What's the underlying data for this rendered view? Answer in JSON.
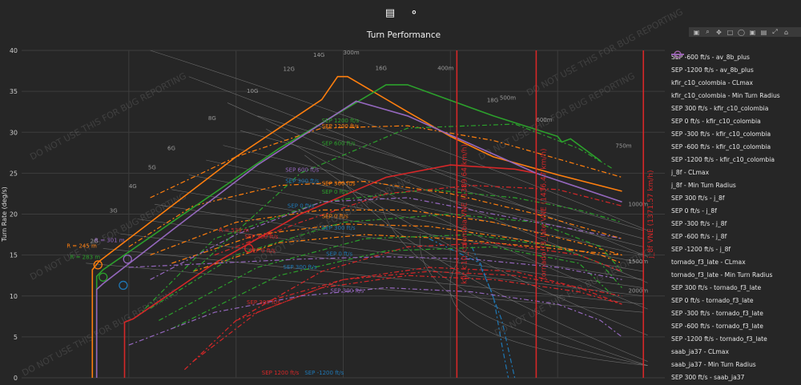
{
  "toolbar": {
    "ruler_icon": "ruler-icon",
    "share_icon": "share-icon",
    "modebar_icons": [
      "camera-icon",
      "zoom-icon",
      "pan-icon",
      "box-select-icon",
      "lasso-icon",
      "zoom-in-icon",
      "zoom-out-icon",
      "autoscale-icon",
      "home-icon"
    ]
  },
  "chart_data": {
    "type": "line",
    "title": "Turn Performance",
    "xlabel": "",
    "ylabel": "Turn Rate (deg/s)",
    "ylim": [
      0,
      40
    ],
    "xlim": [
      0,
      1500
    ],
    "yticks": [
      0,
      5,
      10,
      15,
      20,
      25,
      30,
      35,
      40
    ],
    "watermark": "DO NOT USE THIS FOR BUG REPORTING",
    "grid": true,
    "legend_position": "right",
    "g_labels": [
      {
        "t": "2G",
        "x": 160,
        "y": 16.5
      },
      {
        "t": "3G",
        "x": 205,
        "y": 20.2
      },
      {
        "t": "4G",
        "x": 250,
        "y": 23.2
      },
      {
        "t": "5G",
        "x": 295,
        "y": 25.5
      },
      {
        "t": "6G",
        "x": 340,
        "y": 27.8
      },
      {
        "t": "8G",
        "x": 435,
        "y": 31.5
      },
      {
        "t": "10G",
        "x": 525,
        "y": 34.8
      },
      {
        "t": "12G",
        "x": 610,
        "y": 37.5
      },
      {
        "t": "14G",
        "x": 680,
        "y": 39.2
      },
      {
        "t": "16G",
        "x": 825,
        "y": 37.6
      },
      {
        "t": "18G",
        "x": 1085,
        "y": 33.7
      }
    ],
    "radius_labels": [
      {
        "t": "300m",
        "x": 750,
        "y": 39.5
      },
      {
        "t": "400m",
        "x": 970,
        "y": 37.6
      },
      {
        "t": "500m",
        "x": 1115,
        "y": 34.0
      },
      {
        "t": "600m",
        "x": 1200,
        "y": 31.3
      },
      {
        "t": "750m",
        "x": 1385,
        "y": 28.1
      },
      {
        "t": "1000m",
        "x": 1415,
        "y": 21.0
      },
      {
        "t": "1500m",
        "x": 1415,
        "y": 14.0
      },
      {
        "t": "2000m",
        "x": 1415,
        "y": 10.4
      }
    ],
    "vlines": [
      {
        "name": "kfir VNE",
        "label": "kfir_c10_colombia VNE (1389.64 km/h)",
        "x": 1015,
        "color": "#d62728"
      },
      {
        "name": "tornado VNE",
        "label": "tornado_f3_late VNE (1436.47 km/h)",
        "x": 1200,
        "color": "#d62728"
      },
      {
        "name": "j_8f VNE",
        "label": "j_8f VNE (1371.57 km/h)",
        "x": 1450,
        "color": "#d62728"
      }
    ],
    "annotations": [
      {
        "t": "R = 245 m",
        "x": 105,
        "y": 15.9,
        "color": "#ff7f0e"
      },
      {
        "t": "R = 301 m",
        "x": 170,
        "y": 16.6,
        "color": "#9467bd"
      },
      {
        "t": "R = 283 m",
        "x": 113,
        "y": 14.5,
        "color": "#2ca02c"
      },
      {
        "t": "R = 539 m",
        "x": 460,
        "y": 17.8,
        "color": "#d62728"
      },
      {
        "t": "SEP 1200 ft/s",
        "x": 700,
        "y": 31.2,
        "color": "#2ca02c"
      },
      {
        "t": "SEP 1200 ft/s",
        "x": 700,
        "y": 30.5,
        "color": "#ff7f0e"
      },
      {
        "t": "SEP 600 ft/s",
        "x": 700,
        "y": 28.4,
        "color": "#2ca02c"
      },
      {
        "t": "SEP 600 ft/s",
        "x": 615,
        "y": 25.2,
        "color": "#9467bd"
      },
      {
        "t": "SEP 300 ft/s",
        "x": 615,
        "y": 23.8,
        "color": "#1f77b4"
      },
      {
        "t": "SEP 300 ft/s",
        "x": 700,
        "y": 23.5,
        "color": "#ff7f0e"
      },
      {
        "t": "SEP 0 ft/s",
        "x": 700,
        "y": 22.5,
        "color": "#2ca02c"
      },
      {
        "t": "SEP 0 ft/s",
        "x": 620,
        "y": 20.8,
        "color": "#1f77b4"
      },
      {
        "t": "SEP 0 ft/s",
        "x": 700,
        "y": 19.5,
        "color": "#ff7f0e"
      },
      {
        "t": "SEP 300 ft/s",
        "x": 700,
        "y": 18.1,
        "color": "#1f77b4"
      },
      {
        "t": "SEP 300 ft/s",
        "x": 520,
        "y": 17.0,
        "color": "#d62728"
      },
      {
        "t": "SEP 0 ft/s",
        "x": 530,
        "y": 15.3,
        "color": "#d62728"
      },
      {
        "t": "SEP 0 ft/s",
        "x": 710,
        "y": 14.9,
        "color": "#1f77b4"
      },
      {
        "t": "SEP 300 ft/s",
        "x": 610,
        "y": 13.3,
        "color": "#1f77b4"
      },
      {
        "t": "SEP 300 ft/s",
        "x": 525,
        "y": 9.0,
        "color": "#d62728"
      },
      {
        "t": "SEP 300 ft/s",
        "x": 720,
        "y": 10.4,
        "color": "#9467bd"
      },
      {
        "t": "SEP 1200 ft/s",
        "x": 560,
        "y": 0.4,
        "color": "#d62728"
      },
      {
        "t": "SEP -1200 ft/s",
        "x": 660,
        "y": 0.4,
        "color": "#1f77b4"
      }
    ],
    "series": [
      {
        "name": "SEP -600 ft/s - av_8b_plus",
        "color": "#1f77b4",
        "dash": "6,3,2,3",
        "x": [
          1050,
          1100,
          1120,
          1135
        ],
        "y": [
          16,
          10,
          4,
          0
        ]
      },
      {
        "name": "SEP -1200 ft/s - av_8b_plus",
        "color": "#1f77b4",
        "dash": "6,3,2,3",
        "x": [
          950,
          1070,
          1120,
          1150
        ],
        "y": [
          17,
          14,
          7,
          0
        ]
      },
      {
        "name": "kfir_c10_colombia - CLmax",
        "color": "#ff7f0e",
        "dash": "",
        "x": [
          165,
          165,
          180,
          300,
          500,
          700,
          737,
          760,
          900,
          1000,
          1100,
          1250,
          1400
        ],
        "y": [
          0,
          13.2,
          14.2,
          19,
          27,
          34,
          36.8,
          36.8,
          32.5,
          29.5,
          27,
          24.8,
          22.8
        ]
      },
      {
        "name": "SEP 300 ft/s - kfir_c10_colombia",
        "color": "#ff7f0e",
        "dash": "6,3,2,3",
        "x": [
          250,
          400,
          600,
          800,
          1000,
          1200,
          1400
        ],
        "y": [
          16,
          21,
          23.5,
          24,
          22.5,
          20,
          17
        ]
      },
      {
        "name": "SEP 0 ft/s - kfir_c10_colombia",
        "color": "#ff7f0e",
        "dash": "6,3,2,3",
        "x": [
          300,
          500,
          700,
          900,
          1100,
          1300,
          1400
        ],
        "y": [
          15,
          19,
          20.5,
          20.5,
          19,
          16.5,
          15
        ]
      },
      {
        "name": "SEP -300 ft/s - kfir_c10_colombia",
        "color": "#ff7f0e",
        "dash": "6,3,2,3",
        "x": [
          350,
          550,
          750,
          950,
          1150,
          1350,
          1400
        ],
        "y": [
          14,
          17.5,
          18.8,
          18.5,
          17,
          15,
          14
        ]
      },
      {
        "name": "SEP -600 ft/s - kfir_c10_colombia",
        "color": "#ff7f0e",
        "dash": "6,3,2,3",
        "x": [
          400,
          600,
          800,
          1000,
          1200,
          1400
        ],
        "y": [
          13,
          16.5,
          17.5,
          17,
          16,
          15
        ]
      },
      {
        "name": "SEP -1200 ft/s - kfir_c10_colombia",
        "color": "#ff7f0e",
        "dash": "6,3,2,3",
        "x": [
          300,
          500,
          700,
          900,
          1100,
          1300,
          1400
        ],
        "y": [
          22,
          27,
          30.5,
          30.8,
          29,
          26,
          24.5
        ]
      },
      {
        "name": "j_8f - CLmax",
        "color": "#2ca02c",
        "dash": "",
        "x": [
          175,
          175,
          190,
          350,
          600,
          850,
          900,
          1100,
          1250,
          1260,
          1280,
          1350
        ],
        "y": [
          0,
          12.4,
          13.2,
          19,
          28,
          35.8,
          35.8,
          32,
          29.5,
          28.8,
          29.2,
          26.5
        ]
      },
      {
        "name": "SEP 300 ft/s - j_8f",
        "color": "#2ca02c",
        "dash": "6,3,2,3",
        "x": [
          270,
          450,
          700,
          950,
          1150,
          1300,
          1400
        ],
        "y": [
          7.5,
          17,
          21.5,
          23,
          22,
          20.5,
          19
        ]
      },
      {
        "name": "SEP 0 ft/s - j_8f",
        "color": "#2ca02c",
        "dash": "6,3,2,3",
        "x": [
          300,
          500,
          750,
          1000,
          1200,
          1350,
          1400
        ],
        "y": [
          8.5,
          15,
          19,
          20,
          19,
          16,
          13
        ]
      },
      {
        "name": "SEP -300 ft/s - j_8f",
        "color": "#2ca02c",
        "dash": "6,3,2,3",
        "x": [
          320,
          550,
          800,
          1050,
          1250,
          1350,
          1400
        ],
        "y": [
          7,
          13.5,
          17,
          17.5,
          16,
          14,
          11
        ]
      },
      {
        "name": "SEP -600 ft/s - j_8f",
        "color": "#2ca02c",
        "dash": "6,3,2,3",
        "x": [
          350,
          600,
          850,
          1100,
          1300,
          1380
        ],
        "y": [
          6,
          12.5,
          15.5,
          16,
          14,
          10
        ]
      },
      {
        "name": "SEP -1200 ft/s - j_8f",
        "color": "#2ca02c",
        "dash": "6,3,2,3",
        "x": [
          400,
          650,
          900,
          1150,
          1300,
          1380
        ],
        "y": [
          13,
          25,
          30.5,
          31,
          28,
          25.5
        ]
      },
      {
        "name": "tornado_f3_late - CLmax",
        "color": "#d62728",
        "dash": "",
        "x": [
          240,
          240,
          260,
          450,
          650,
          850,
          1000,
          1150,
          1200
        ],
        "y": [
          0,
          6.8,
          7.2,
          14,
          20,
          24.5,
          26,
          25.5,
          25
        ]
      },
      {
        "name": "SEP 300 ft/s - tornado_f3_late",
        "color": "#d62728",
        "dash": "6,3,2,3",
        "x": [
          380,
          500,
          700,
          900,
          1100,
          1300,
          1400
        ],
        "y": [
          1,
          7,
          13,
          16,
          16.5,
          15,
          13
        ]
      },
      {
        "name": "SEP 0 ft/s - tornado_f3_late",
        "color": "#d62728",
        "dash": "6,3,2,3",
        "x": [
          400,
          550,
          750,
          950,
          1150,
          1300,
          1400
        ],
        "y": [
          2,
          8,
          12,
          13.5,
          13,
          11,
          9
        ]
      },
      {
        "name": "SEP -300 ft/s - tornado_f3_late",
        "color": "#d62728",
        "dash": "6,3,2,3",
        "x": [
          500,
          700,
          900,
          1100,
          1300,
          1400
        ],
        "y": [
          7,
          11,
          12.5,
          12,
          10.5,
          9
        ]
      },
      {
        "name": "SEP -600 ft/s - tornado_f3_late",
        "color": "#d62728",
        "dash": "6,3,2,3",
        "x": [
          550,
          750,
          950,
          1150,
          1300,
          1400
        ],
        "y": [
          9,
          12,
          13,
          12.5,
          11,
          10
        ]
      },
      {
        "name": "SEP -1200 ft/s - tornado_f3_late",
        "color": "#d62728",
        "dash": "6,3,2,3",
        "x": [
          450,
          650,
          850,
          1050,
          1250,
          1400
        ],
        "y": [
          15,
          19,
          22.5,
          23.5,
          23,
          21
        ]
      },
      {
        "name": "saab_ja37 - CLmax",
        "color": "#9467bd",
        "dash": "",
        "x": [
          175,
          175,
          190,
          350,
          550,
          780,
          900,
          1050,
          1200,
          1400
        ],
        "y": [
          0,
          10.8,
          11.5,
          18,
          26,
          33.8,
          32,
          28.5,
          25,
          21.5
        ]
      },
      {
        "name": "SEP 300 ft/s - saab_ja37",
        "color": "#9467bd",
        "dash": "6,3,2,3",
        "x": [
          250,
          450,
          650,
          850,
          1050,
          1250,
          1350,
          1400
        ],
        "y": [
          4,
          8,
          10,
          11,
          10.5,
          9,
          7,
          5
        ]
      },
      {
        "name": "SEP 600 ft/s - saab_ja37",
        "color": "#9467bd",
        "dash": "6,3,2,3",
        "x": [
          300,
          500,
          700,
          900,
          1100,
          1300,
          1400
        ],
        "y": [
          12,
          17.5,
          21.5,
          22,
          20,
          18,
          17
        ]
      },
      {
        "name": "SEP 0 ft/s - saab_ja37",
        "color": "#9467bd",
        "dash": "6,3,2,3",
        "x": [
          250,
          450,
          650,
          850,
          1050,
          1250,
          1400
        ],
        "y": [
          13.5,
          14,
          14.5,
          14.8,
          14.5,
          13.5,
          12
        ]
      }
    ],
    "min_radius_points": [
      {
        "name": "kfir_c10_colombia - Min Turn Radius",
        "x": 178,
        "y": 13.8,
        "color": "#ff7f0e"
      },
      {
        "name": "j_8f - Min Turn Radius",
        "x": 190,
        "y": 12.3,
        "color": "#2ca02c"
      },
      {
        "name": "saab_ja37 - Min Turn Radius",
        "x": 247,
        "y": 14.5,
        "color": "#9467bd"
      },
      {
        "name": "av_8b_plus - Min Turn Radius",
        "x": 237,
        "y": 11.3,
        "color": "#1f77b4"
      },
      {
        "name": "tornado_f3_late - Min Turn Radius",
        "x": 530,
        "y": 15.8,
        "color": "#d62728"
      }
    ]
  },
  "legend": [
    {
      "label": "SEP -600 ft/s - av_8b_plus",
      "color": "#1f77b4",
      "style": "dash"
    },
    {
      "label": "SEP -1200 ft/s - av_8b_plus",
      "color": "#1f77b4",
      "style": "dash"
    },
    {
      "label": "kfir_c10_colombia - CLmax",
      "color": "#ff7f0e",
      "style": "solid"
    },
    {
      "label": "kfir_c10_colombia - Min Turn Radius",
      "color": "#ff7f0e",
      "style": "circle"
    },
    {
      "label": "SEP 300 ft/s - kfir_c10_colombia",
      "color": "#ff7f0e",
      "style": "dash"
    },
    {
      "label": "SEP 0 ft/s - kfir_c10_colombia",
      "color": "#ff7f0e",
      "style": "dash"
    },
    {
      "label": "SEP -300 ft/s - kfir_c10_colombia",
      "color": "#ff7f0e",
      "style": "dash"
    },
    {
      "label": "SEP -600 ft/s - kfir_c10_colombia",
      "color": "#ff7f0e",
      "style": "dash"
    },
    {
      "label": "SEP -1200 ft/s - kfir_c10_colombia",
      "color": "#ff7f0e",
      "style": "dash"
    },
    {
      "label": "j_8f - CLmax",
      "color": "#2ca02c",
      "style": "solid"
    },
    {
      "label": "j_8f - Min Turn Radius",
      "color": "#2ca02c",
      "style": "circle"
    },
    {
      "label": "SEP 300 ft/s - j_8f",
      "color": "#2ca02c",
      "style": "dash"
    },
    {
      "label": "SEP 0 ft/s - j_8f",
      "color": "#2ca02c",
      "style": "dash"
    },
    {
      "label": "SEP -300 ft/s - j_8f",
      "color": "#2ca02c",
      "style": "dash"
    },
    {
      "label": "SEP -600 ft/s - j_8f",
      "color": "#2ca02c",
      "style": "dash"
    },
    {
      "label": "SEP -1200 ft/s - j_8f",
      "color": "#2ca02c",
      "style": "dash"
    },
    {
      "label": "tornado_f3_late - CLmax",
      "color": "#d62728",
      "style": "solid"
    },
    {
      "label": "tornado_f3_late - Min Turn Radius",
      "color": "#d62728",
      "style": "circle"
    },
    {
      "label": "SEP 300 ft/s - tornado_f3_late",
      "color": "#d62728",
      "style": "dash"
    },
    {
      "label": "SEP 0 ft/s - tornado_f3_late",
      "color": "#d62728",
      "style": "dash"
    },
    {
      "label": "SEP -300 ft/s - tornado_f3_late",
      "color": "#d62728",
      "style": "dash"
    },
    {
      "label": "SEP -600 ft/s - tornado_f3_late",
      "color": "#d62728",
      "style": "dash"
    },
    {
      "label": "SEP -1200 ft/s - tornado_f3_late",
      "color": "#d62728",
      "style": "dash"
    },
    {
      "label": "saab_ja37 - CLmax",
      "color": "#9467bd",
      "style": "solid"
    },
    {
      "label": "saab_ja37 - Min Turn Radius",
      "color": "#9467bd",
      "style": "circle"
    },
    {
      "label": "SEP 300 ft/s - saab_ja37",
      "color": "#9467bd",
      "style": "dash"
    }
  ]
}
